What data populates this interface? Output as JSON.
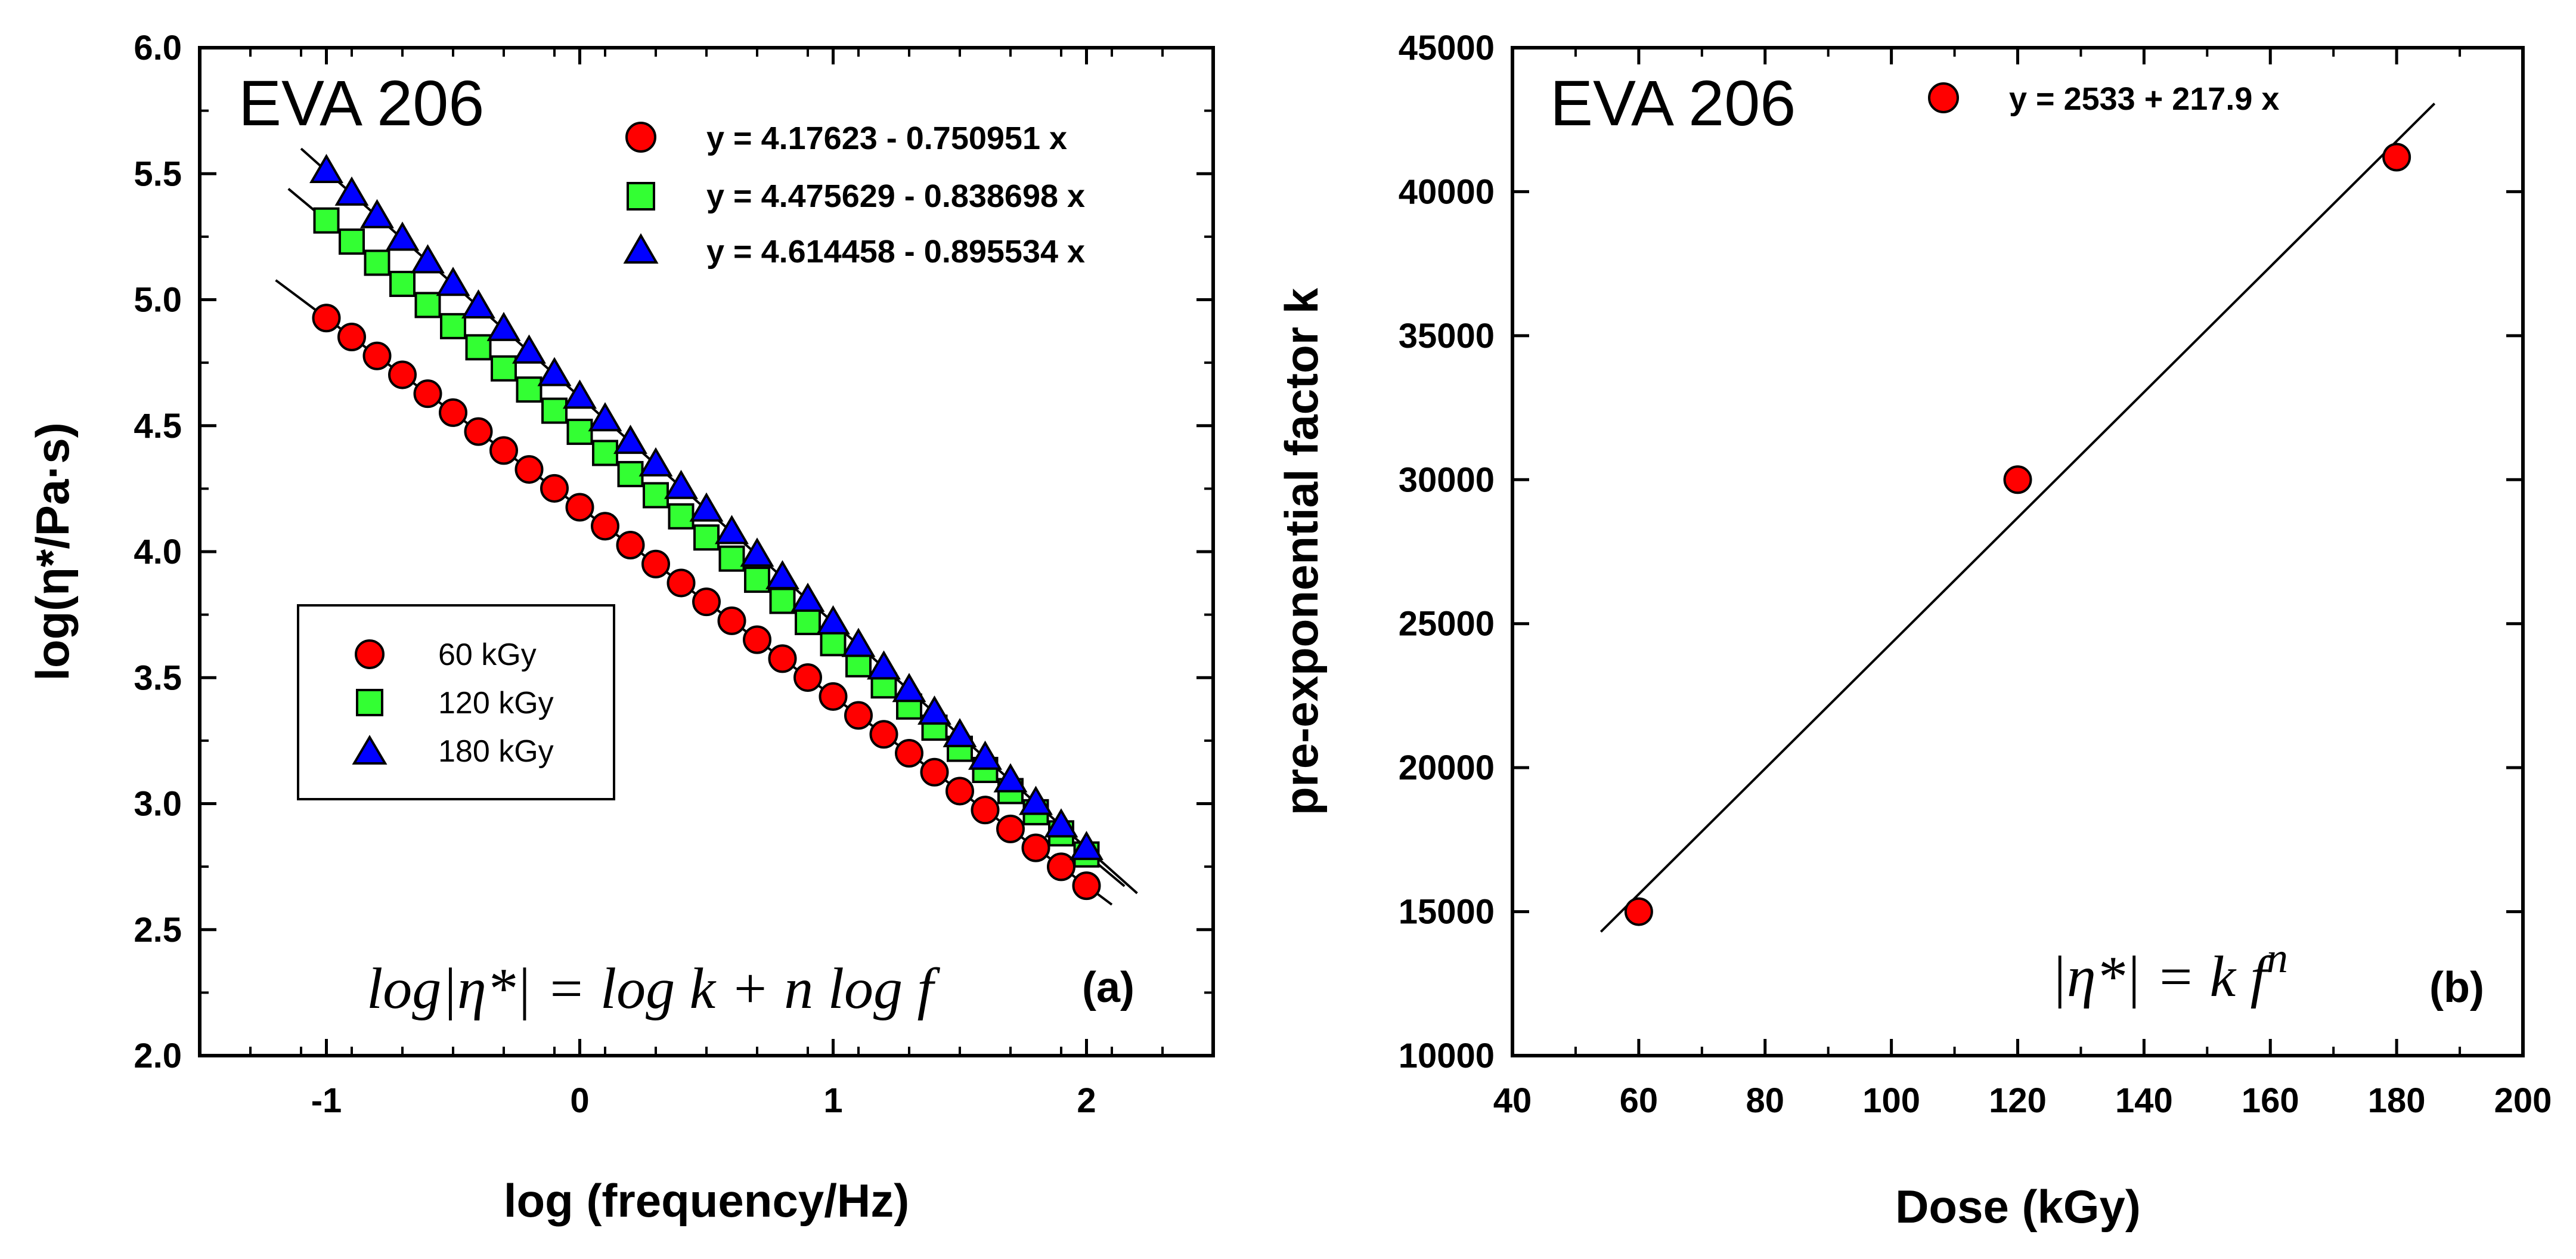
{
  "chart_data": [
    {
      "type": "scatter",
      "panel": "(a)",
      "title": "EVA 206",
      "xlabel": "log (frequency/Hz)",
      "ylabel": "log(η*/Pa·s)",
      "xlim": [
        -1.5,
        2.5
      ],
      "ylim": [
        2.0,
        6.0
      ],
      "x_ticks": [
        -1,
        0,
        1,
        2
      ],
      "x_tick_labels": [
        "-1",
        "0",
        "1",
        "2"
      ],
      "y_ticks": [
        2.0,
        2.5,
        3.0,
        3.5,
        4.0,
        4.5,
        5.0,
        5.5,
        6.0
      ],
      "y_tick_labels": [
        "2.0",
        "2.5",
        "3.0",
        "3.5",
        "4.0",
        "4.5",
        "5.0",
        "5.5",
        "6.0"
      ],
      "x": [
        -1.0,
        -0.9,
        -0.8,
        -0.7,
        -0.6,
        -0.5,
        -0.4,
        -0.3,
        -0.2,
        -0.1,
        0.0,
        0.1,
        0.2,
        0.3,
        0.4,
        0.5,
        0.6,
        0.7,
        0.8,
        0.9,
        1.0,
        1.1,
        1.2,
        1.3,
        1.4,
        1.5,
        1.6,
        1.7,
        1.8,
        1.9,
        2.0
      ],
      "series": [
        {
          "name": "60 kGy",
          "marker": "circle",
          "color": "#ff0000",
          "intercept": 4.17623,
          "slope": -0.750951,
          "fit_equation": "y = 4.17623 - 0.750951 x",
          "fit_x": [
            -1.2,
            2.1
          ]
        },
        {
          "name": "120 kGy",
          "marker": "square",
          "color": "#33ff33",
          "intercept": 4.475629,
          "slope": -0.838698,
          "fit_equation": "y = 4.475629 - 0.838698 x",
          "fit_x": [
            -1.15,
            2.15
          ]
        },
        {
          "name": "180 kGy",
          "marker": "triangle",
          "color": "#0000ff",
          "intercept": 4.614458,
          "slope": -0.895534,
          "fit_equation": "y = 4.614458 - 0.895534 x",
          "fit_x": [
            -1.1,
            2.2
          ]
        }
      ],
      "annotation": "log|η*| = log k + n log f",
      "legend_position": "center-left"
    },
    {
      "type": "scatter",
      "panel": "(b)",
      "title": "EVA 206",
      "xlabel": "Dose (kGy)",
      "ylabel": "pre-exponential factor k",
      "xlim": [
        40,
        200
      ],
      "ylim": [
        10000,
        45000
      ],
      "x_ticks": [
        40,
        60,
        80,
        100,
        120,
        140,
        160,
        180,
        200
      ],
      "x_tick_labels": [
        "40",
        "60",
        "80",
        "100",
        "120",
        "140",
        "160",
        "180",
        "200"
      ],
      "y_ticks": [
        10000,
        15000,
        20000,
        25000,
        30000,
        35000,
        40000,
        45000
      ],
      "y_tick_labels": [
        "10000",
        "15000",
        "20000",
        "25000",
        "30000",
        "35000",
        "40000",
        "45000"
      ],
      "x": [
        60,
        120,
        180
      ],
      "y": [
        15000,
        30000,
        41200
      ],
      "color": "#ff0000",
      "fit_equation": "y = 2533 + 217.9 x",
      "intercept": 2533,
      "slope": 217.9,
      "fit_x": [
        54,
        186
      ],
      "annotation": "|η*| = k f^n",
      "legend_position": "top"
    }
  ]
}
